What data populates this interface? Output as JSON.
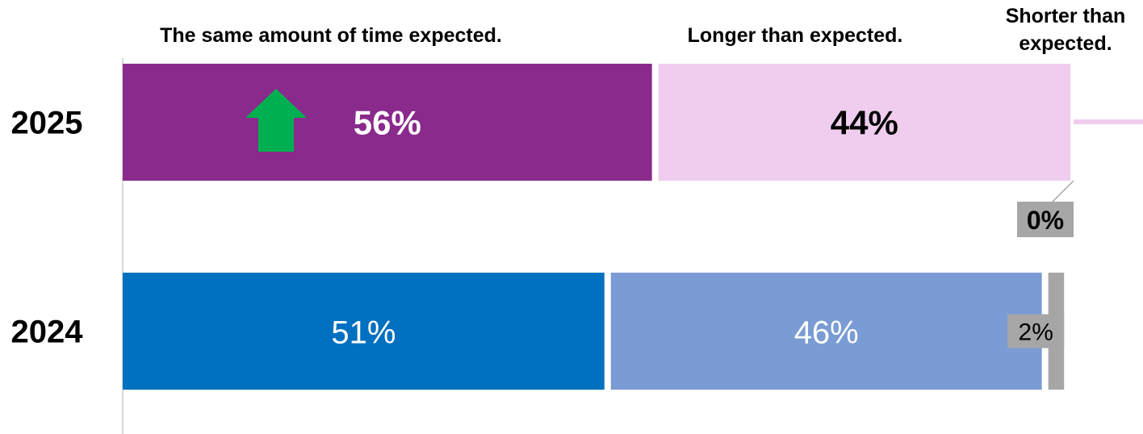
{
  "chart_data": {
    "type": "bar",
    "orientation": "horizontal",
    "stacked": true,
    "normalized_percent": true,
    "categories": [
      "2025",
      "2024"
    ],
    "series": [
      {
        "name": "The same amount of time expected.",
        "values": [
          56,
          51
        ],
        "labels": [
          "56%",
          "51%"
        ]
      },
      {
        "name": "Longer than expected.",
        "values": [
          44,
          46
        ],
        "labels": [
          "44%",
          "46%"
        ]
      },
      {
        "name": "Shorter than expected.",
        "values": [
          0,
          2
        ],
        "labels": [
          "0%",
          "2%"
        ]
      }
    ],
    "legend_lines": [
      [
        "The same amount of time expected."
      ],
      [
        "Longer than expected."
      ],
      [
        "Shorter than",
        "expected."
      ]
    ],
    "xlim": [
      0,
      100
    ],
    "grid": false,
    "legend_placement": "top",
    "colors": {
      "2025": [
        "#8a2a8c",
        "#f0cdef",
        "#a6a6a6"
      ],
      "2024": [
        "#0070c0",
        "#7a9bd4",
        "#a6a6a6"
      ]
    },
    "label_styles": {
      "2025": {
        "bold": true,
        "colors": [
          "#ffffff",
          "#000000",
          "#000000"
        ]
      },
      "2024": {
        "bold": false,
        "colors": [
          "#ffffff",
          "#ffffff",
          "#000000"
        ]
      }
    },
    "annotation": {
      "icon": "green-up-arrow-icon",
      "color": "#00b050",
      "category": "2025",
      "series_index": 0
    }
  }
}
